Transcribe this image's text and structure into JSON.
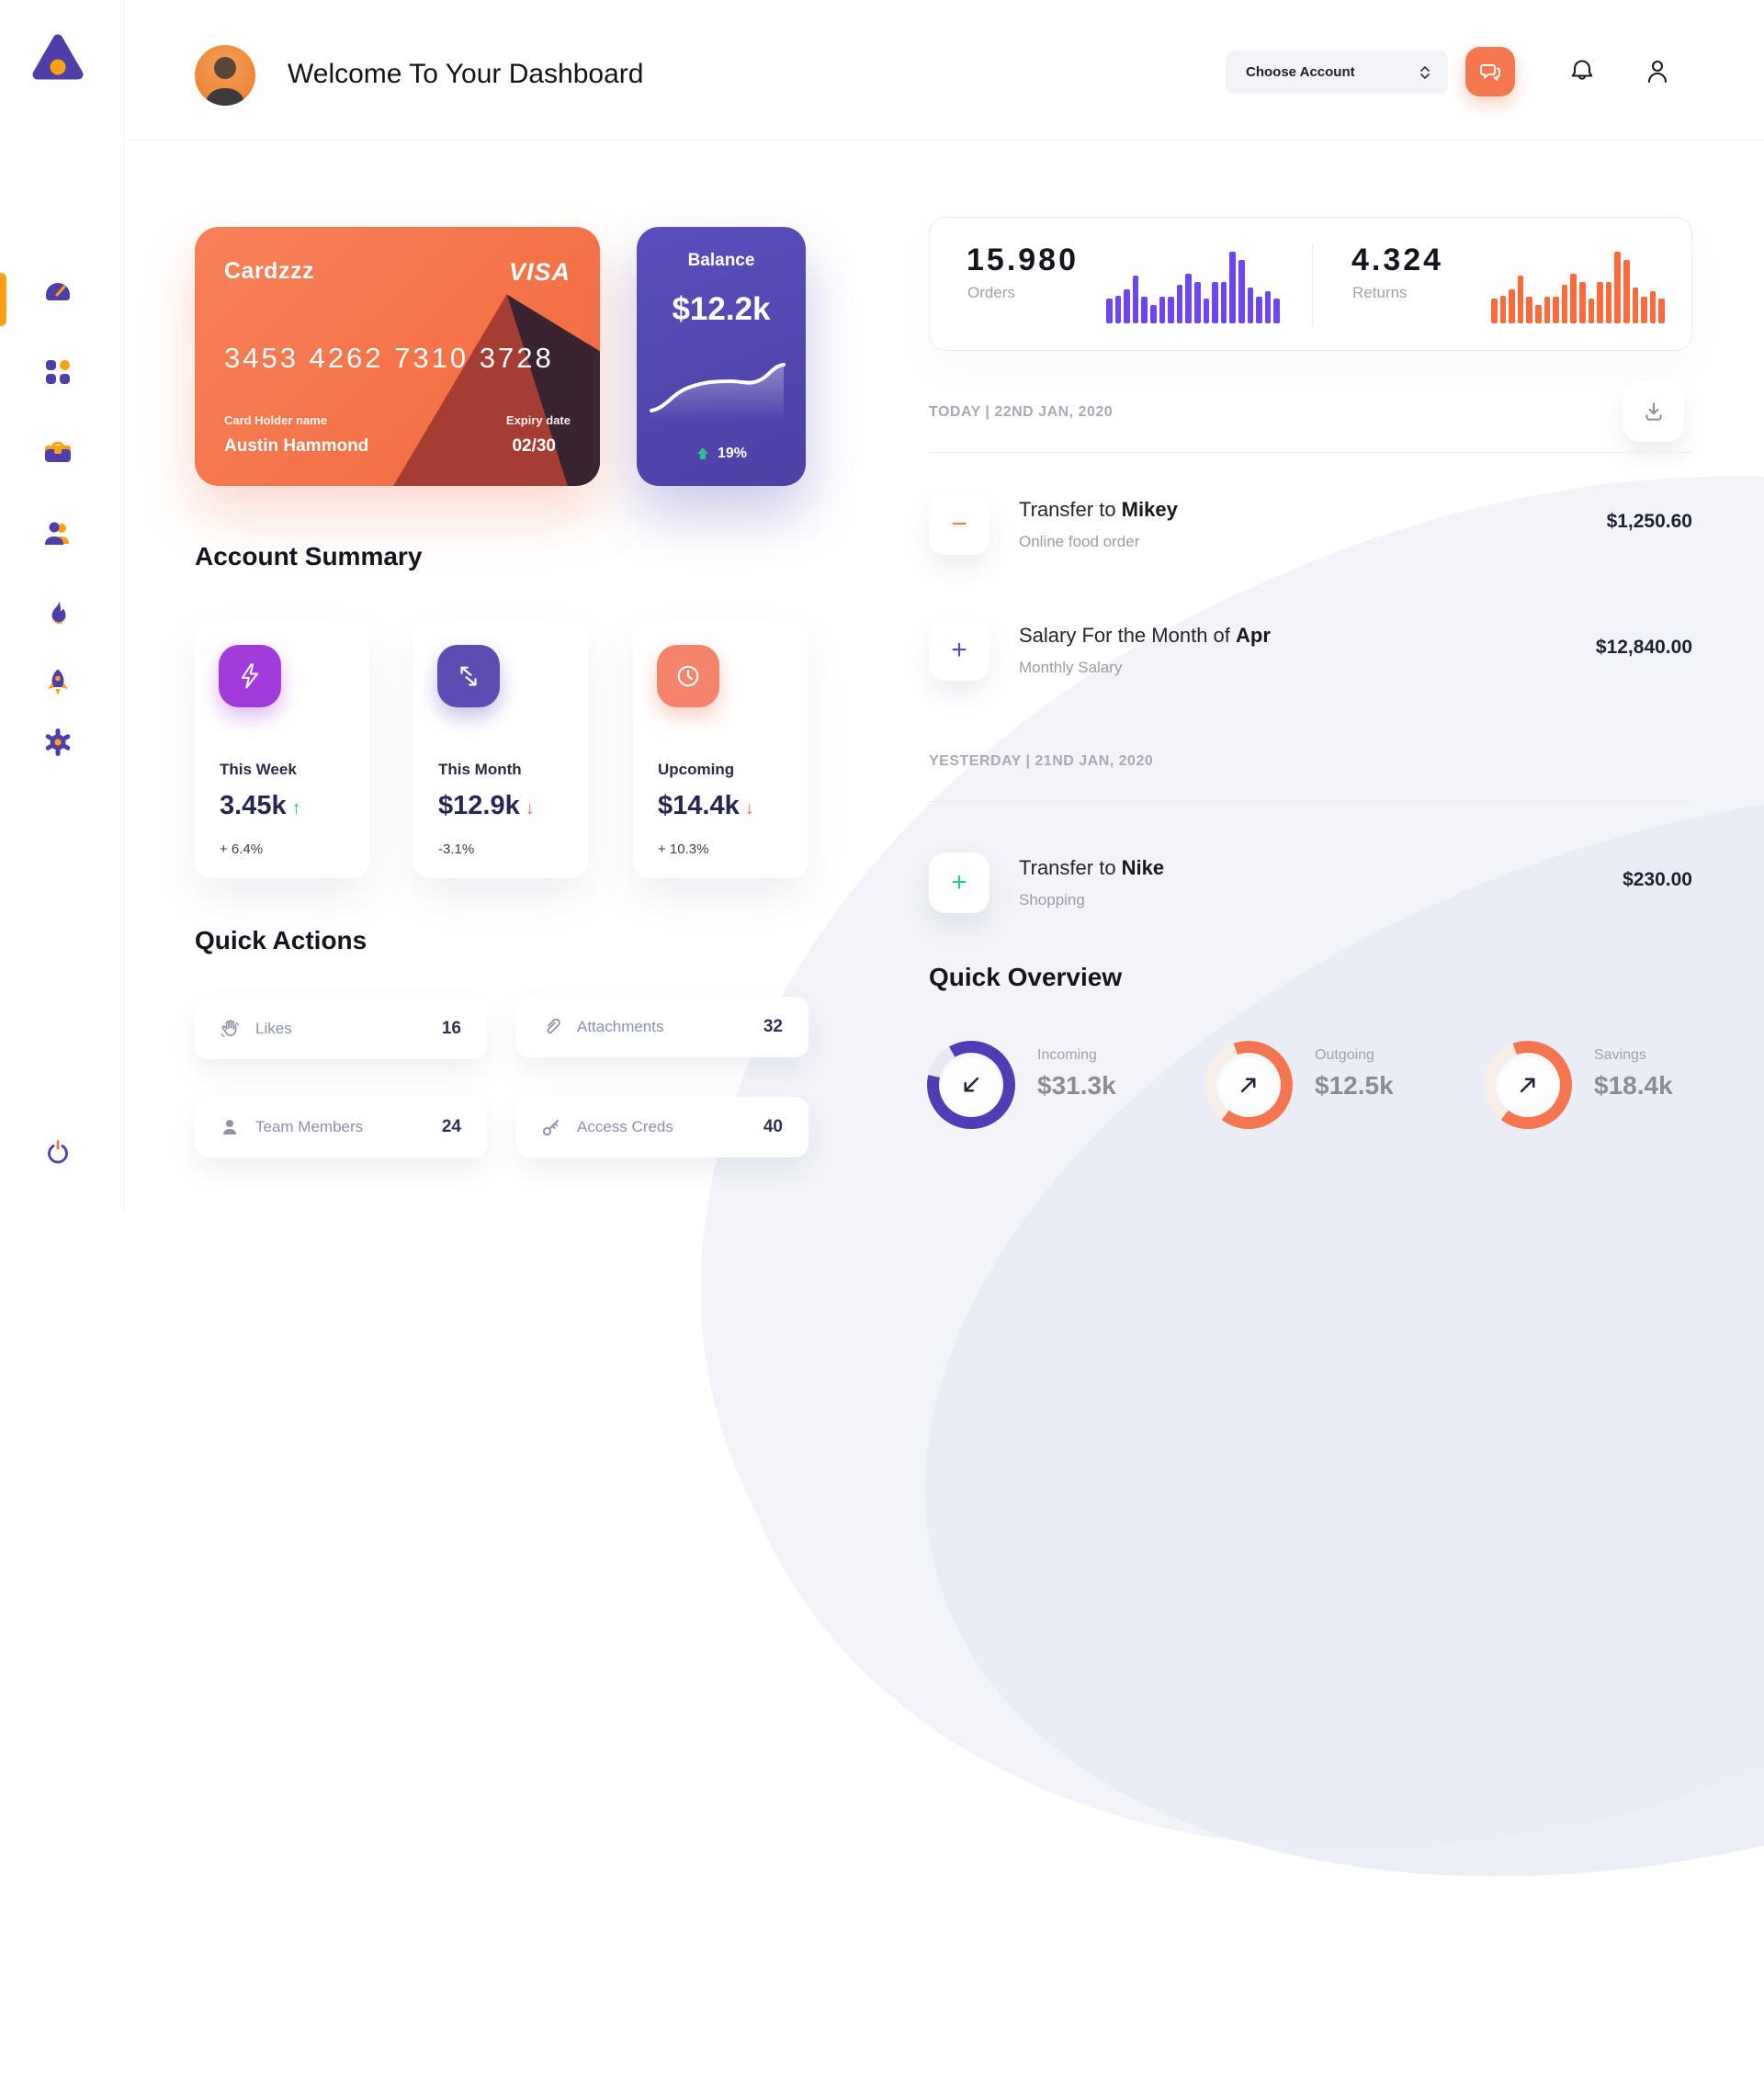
{
  "colors": {
    "accent_orange": "#f4774e",
    "accent_purple": "#5448b0",
    "sidebar_icon_purple": "#4f3da8",
    "sidebar_icon_orange": "#ffa113",
    "positive_green": "#27c07d",
    "negative_red": "#f4655c",
    "bar_purple": "#6d46f2",
    "bar_orange": "#f96a3d"
  },
  "sidebar": {
    "logo_icon": "triangle-logo",
    "items": [
      {
        "icon": "speedometer-icon",
        "active": true
      },
      {
        "icon": "grid-icon",
        "active": false
      },
      {
        "icon": "briefcase-icon",
        "active": false
      },
      {
        "icon": "users-icon",
        "active": false
      },
      {
        "icon": "flame-icon",
        "active": false
      },
      {
        "icon": "rocket-icon",
        "active": false
      },
      {
        "icon": "gear-icon",
        "active": false
      }
    ],
    "logout_icon": "power-icon"
  },
  "header": {
    "title": "Welcome To Your Dashboard",
    "account_label": "Choose Account",
    "icons": [
      "chat-icon",
      "bell-icon",
      "user-icon"
    ]
  },
  "card": {
    "name": "Cardzzz",
    "brand": "VISA",
    "number": "3453 4262 7310 3728",
    "holder_label": "Card Holder name",
    "holder": "Austin Hammond",
    "expiry_label": "Expiry date",
    "expiry": "02/30"
  },
  "balance": {
    "label": "Balance",
    "value": "$12.2k",
    "delta": "19%"
  },
  "stats": {
    "orders": {
      "value": "15.980",
      "label": "Orders",
      "color": "#6d46f2",
      "bars": [
        34,
        37,
        46,
        65,
        36,
        25,
        36,
        36,
        53,
        67,
        56,
        34,
        56,
        56,
        98,
        86,
        49,
        36,
        44,
        34
      ]
    },
    "returns": {
      "value": "4.324",
      "label": "Returns",
      "color": "#f96a3d",
      "bars": [
        34,
        37,
        46,
        65,
        36,
        25,
        36,
        36,
        53,
        67,
        56,
        34,
        56,
        56,
        98,
        86,
        49,
        36,
        44,
        34
      ]
    }
  },
  "summary": {
    "title": "Account Summary",
    "cards": [
      {
        "icon": "lightning-icon",
        "icon_bg": "#a13bd9",
        "label": "This Week",
        "value": "3.45k",
        "direction": "up",
        "arrow": "↑",
        "delta": "+ 6.4%"
      },
      {
        "icon": "swap-arrows-icon",
        "icon_bg": "#5d4db2",
        "label": "This Month",
        "value": "$12.9k",
        "direction": "down",
        "arrow": "↓",
        "delta": "-3.1%"
      },
      {
        "icon": "clock-icon",
        "icon_bg": "#f4846a",
        "label": "Upcoming",
        "value": "$14.4k",
        "direction": "down",
        "arrow": "↓",
        "delta": "+ 10.3%"
      }
    ]
  },
  "quick_actions": {
    "title": "Quick Actions",
    "items": [
      {
        "icon": "waving-hand-icon",
        "label": "Likes",
        "value": "16"
      },
      {
        "icon": "paperclip-icon",
        "label": "Attachments",
        "value": "32"
      },
      {
        "icon": "member-icon",
        "label": "Team Members",
        "value": "24"
      },
      {
        "icon": "key-icon",
        "label": "Access Creds",
        "value": "40"
      }
    ]
  },
  "transactions": {
    "download_icon": "download-icon",
    "groups": [
      {
        "date_label": "TODAY | 22ND JAN, 2020",
        "items": [
          {
            "sign": "−",
            "sign_color": "#f5794f",
            "title_prefix": "Transfer to ",
            "title_bold": "Mikey",
            "subtitle": "Online food order",
            "amount": "$1,250.60"
          },
          {
            "sign": "+",
            "sign_color": "#5b4bc4",
            "title_prefix": "Salary For the Month of ",
            "title_bold": "Apr",
            "subtitle": "Monthly Salary",
            "amount": "$12,840.00"
          }
        ]
      },
      {
        "date_label": "YESTERDAY | 21ND JAN, 2020",
        "items": [
          {
            "sign": "+",
            "sign_color": "#2fc39b",
            "title_prefix": "Transfer to ",
            "title_bold": "Nike",
            "subtitle": "Shopping",
            "amount": "$230.00"
          }
        ]
      }
    ]
  },
  "overview": {
    "title": "Quick Overview",
    "items": [
      {
        "label": "Incoming",
        "value": "$31.3k",
        "percent": 87,
        "rotate": -30,
        "color": "#4f3db5",
        "track": "#eae8f4",
        "arrow": "down-left-arrow-icon"
      },
      {
        "label": "Outgoing",
        "value": "$12.5k",
        "percent": 66,
        "rotate": -20,
        "color": "#f4764e",
        "track": "#f7eee8",
        "arrow": "up-right-arrow-icon"
      },
      {
        "label": "Savings",
        "value": "$18.4k",
        "percent": 66,
        "rotate": -20,
        "color": "#f4764e",
        "track": "#f7eee8",
        "arrow": "up-right-arrow-icon"
      }
    ]
  }
}
